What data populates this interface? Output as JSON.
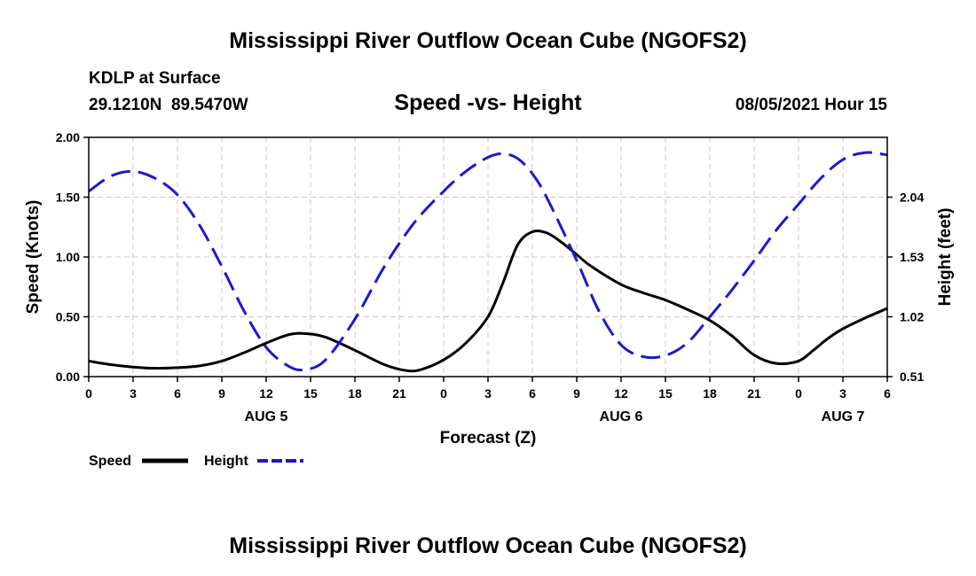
{
  "header": {
    "title": "Mississippi River Outflow Ocean Cube (NGOFS2)",
    "station": "KDLP at Surface",
    "coords": "29.1210N  89.5470W",
    "chart_title": "Speed -vs- Height",
    "datetime": "08/05/2021 Hour 15"
  },
  "footer": {
    "title": "Mississippi River Outflow Ocean Cube (NGOFS2)"
  },
  "legend": {
    "speed_label": "Speed",
    "height_label": "Height"
  },
  "colors": {
    "speed": "#000000",
    "height": "#1a1acc",
    "grid": "#c8c8c8"
  },
  "chart_data": {
    "type": "line",
    "title": "Speed -vs- Height",
    "xlabel": "Forecast (Z)",
    "ylabel": "Speed (Knots)",
    "ylabel_right": "Height (feet)",
    "xlim": [
      0,
      54
    ],
    "ylim": [
      0,
      2.0
    ],
    "ylim_right": [
      0.51,
      2.55
    ],
    "x_tick_values": [
      0,
      3,
      6,
      9,
      12,
      15,
      18,
      21,
      24,
      27,
      30,
      33,
      36,
      39,
      42,
      45,
      48,
      51,
      54
    ],
    "x_tick_labels": [
      "0",
      "3",
      "6",
      "9",
      "12",
      "15",
      "18",
      "21",
      "0",
      "3",
      "6",
      "9",
      "12",
      "15",
      "18",
      "21",
      "0",
      "3",
      "6"
    ],
    "y_tick_values": [
      0,
      0.5,
      1.0,
      1.5,
      2.0
    ],
    "y_tick_labels": [
      "0.00",
      "0.50",
      "1.00",
      "1.50",
      "2.00"
    ],
    "y2_tick_values": [
      0.51,
      1.02,
      1.53,
      2.04
    ],
    "y2_tick_labels": [
      "0.51",
      "1.02",
      "1.53",
      "2.04"
    ],
    "day_labels": [
      {
        "x": 12,
        "label": "AUG 5"
      },
      {
        "x": 36,
        "label": "AUG 6"
      },
      {
        "x": 51,
        "label": "AUG 7"
      }
    ],
    "grid": true,
    "series": [
      {
        "name": "Speed",
        "axis": "left",
        "dash": "solid",
        "x": [
          0,
          1.5,
          3,
          4.5,
          6,
          7.5,
          9,
          10.5,
          12,
          13.5,
          14.6,
          16,
          18,
          20,
          21.5,
          22.5,
          24,
          25.5,
          27,
          28,
          29,
          30,
          31,
          32,
          33,
          34,
          36,
          37.5,
          39,
          40.5,
          42,
          43.5,
          45,
          46.5,
          48,
          49,
          50,
          51,
          52.5,
          54
        ],
        "values": [
          0.13,
          0.1,
          0.08,
          0.07,
          0.075,
          0.09,
          0.13,
          0.2,
          0.28,
          0.35,
          0.36,
          0.33,
          0.22,
          0.1,
          0.05,
          0.06,
          0.14,
          0.28,
          0.5,
          0.78,
          1.1,
          1.21,
          1.2,
          1.12,
          1.02,
          0.92,
          0.77,
          0.7,
          0.64,
          0.56,
          0.47,
          0.34,
          0.18,
          0.11,
          0.13,
          0.22,
          0.32,
          0.4,
          0.49,
          0.57
        ]
      },
      {
        "name": "Height",
        "axis": "right",
        "dash": "dashed",
        "x": [
          0,
          1.5,
          3,
          4.5,
          6,
          7.5,
          9,
          10.5,
          12,
          13.5,
          14.6,
          16,
          18,
          20,
          22,
          24,
          25.5,
          27,
          28,
          29,
          30,
          31,
          33,
          34.5,
          36,
          37.5,
          39,
          40.5,
          42,
          43.5,
          45,
          46.5,
          48,
          49.5,
          51,
          52.5,
          54
        ],
        "values": [
          2.09,
          2.22,
          2.26,
          2.2,
          2.06,
          1.8,
          1.45,
          1.07,
          0.76,
          0.6,
          0.57,
          0.65,
          1.0,
          1.45,
          1.82,
          2.09,
          2.26,
          2.38,
          2.41,
          2.37,
          2.24,
          2.03,
          1.5,
          1.07,
          0.78,
          0.68,
          0.69,
          0.8,
          1.02,
          1.25,
          1.5,
          1.76,
          1.98,
          2.2,
          2.36,
          2.42,
          2.4
        ]
      }
    ]
  }
}
